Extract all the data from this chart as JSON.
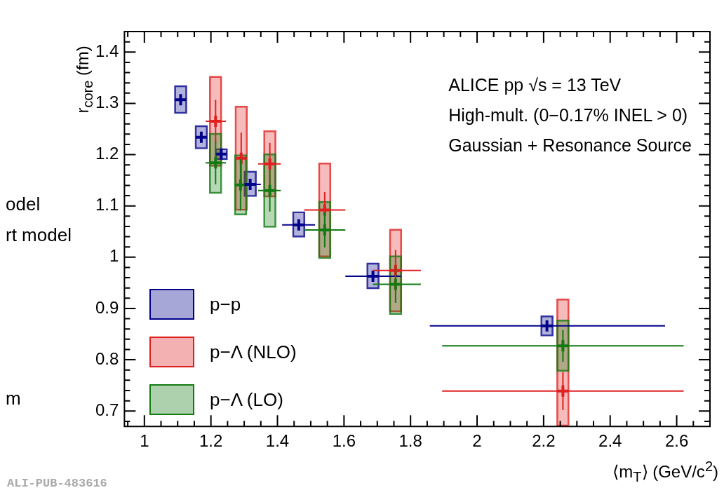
{
  "chart_data": {
    "type": "scatter",
    "xlabel": "⟨m$_{T}$⟩  (GeV/c$^{2}$)",
    "ylabel": "r$_{core}$ (fm)",
    "xlim": [
      0.94,
      2.7
    ],
    "ylim": [
      0.67,
      1.44
    ],
    "xticks": [
      {
        "value": 0.95,
        "label": null
      },
      1,
      {
        "value": 1.05,
        "label": null
      },
      {
        "value": 1.1,
        "label": null
      },
      {
        "value": 1.15,
        "label": null
      },
      1.2,
      {
        "value": 1.25,
        "label": null
      },
      {
        "value": 1.3,
        "label": null
      },
      {
        "value": 1.35,
        "label": null
      },
      1.4,
      {
        "value": 1.45,
        "label": null
      },
      {
        "value": 1.5,
        "label": null
      },
      {
        "value": 1.55,
        "label": null
      },
      1.6,
      {
        "value": 1.65,
        "label": null
      },
      {
        "value": 1.7,
        "label": null
      },
      {
        "value": 1.75,
        "label": null
      },
      1.8,
      {
        "value": 1.85,
        "label": null
      },
      {
        "value": 1.9,
        "label": null
      },
      {
        "value": 1.95,
        "label": null
      },
      2,
      {
        "value": 2.05,
        "label": null
      },
      {
        "value": 2.1,
        "label": null
      },
      {
        "value": 2.15,
        "label": null
      },
      2.2,
      {
        "value": 2.25,
        "label": null
      },
      {
        "value": 2.3,
        "label": null
      },
      {
        "value": 2.35,
        "label": null
      },
      2.4,
      {
        "value": 2.45,
        "label": null
      },
      {
        "value": 2.5,
        "label": null
      },
      {
        "value": 2.55,
        "label": null
      },
      2.6,
      {
        "value": 2.65,
        "label": null
      }
    ],
    "yticks": [
      {
        "value": 0.68,
        "label": null
      },
      0.7,
      {
        "value": 0.72,
        "label": null
      },
      {
        "value": 0.74,
        "label": null
      },
      {
        "value": 0.76,
        "label": null
      },
      {
        "value": 0.78,
        "label": null
      },
      0.8,
      {
        "value": 0.82,
        "label": null
      },
      {
        "value": 0.84,
        "label": null
      },
      {
        "value": 0.86,
        "label": null
      },
      {
        "value": 0.88,
        "label": null
      },
      0.9,
      {
        "value": 0.92,
        "label": null
      },
      {
        "value": 0.94,
        "label": null
      },
      {
        "value": 0.96,
        "label": null
      },
      {
        "value": 0.98,
        "label": null
      },
      1,
      {
        "value": 1.02,
        "label": null
      },
      {
        "value": 1.04,
        "label": null
      },
      {
        "value": 1.06,
        "label": null
      },
      {
        "value": 1.08,
        "label": null
      },
      1.1,
      {
        "value": 1.12,
        "label": null
      },
      {
        "value": 1.14,
        "label": null
      },
      {
        "value": 1.16,
        "label": null
      },
      {
        "value": 1.18,
        "label": null
      },
      1.2,
      {
        "value": 1.22,
        "label": null
      },
      {
        "value": 1.24,
        "label": null
      },
      {
        "value": 1.26,
        "label": null
      },
      {
        "value": 1.28,
        "label": null
      },
      1.3,
      {
        "value": 1.32,
        "label": null
      },
      {
        "value": 1.34,
        "label": null
      },
      {
        "value": 1.36,
        "label": null
      },
      {
        "value": 1.38,
        "label": null
      },
      1.4,
      {
        "value": 1.42,
        "label": null
      }
    ],
    "grid": false,
    "legend": "bottom left",
    "annotations": [
      "ALICE pp √s = 13 TeV",
      "High-mult. (0−0.17% INEL > 0)",
      "Gaussian + Resonance Source",
      "ALI-PUB-483616",
      "odel",
      "rt model",
      "m"
    ],
    "series": [
      {
        "type": "bar",
        "color": "#00008b",
        "x": [
          1.109,
          1.171,
          1.231,
          1.318,
          1.464,
          1.687,
          2.21
        ],
        "base": [
          1.28,
          1.211,
          1.19,
          1.118,
          1.039,
          0.938,
          0.846
        ],
        "values": [
          0.055,
          0.046,
          0.022,
          0.05,
          0.05,
          0.051,
          0.04
        ]
      },
      {
        "type": "bar",
        "color": "#e02020",
        "x": [
          1.214,
          1.291,
          1.377,
          1.542,
          1.755,
          2.258
        ],
        "base": [
          1.177,
          1.091,
          1.117,
          1.0,
          0.893,
          0.67
        ],
        "values": [
          0.176,
          0.204,
          0.13,
          0.184,
          0.162,
          0.249
        ]
      },
      {
        "type": "bar",
        "color": "#127a12",
        "x": [
          1.214,
          1.289,
          1.377,
          1.542,
          1.755,
          2.258
        ],
        "base": [
          1.124,
          1.082,
          1.058,
          0.997,
          0.888,
          0.777
        ],
        "values": [
          0.118,
          0.118,
          0.144,
          0.112,
          0.115,
          0.101
        ]
      },
      {
        "name": "p−p",
        "color": "#00008b",
        "marker": "cross",
        "x": [
          1.109,
          1.171,
          1.231,
          1.318,
          1.464,
          1.687,
          2.21
        ],
        "values": [
          1.307,
          1.234,
          1.201,
          1.142,
          1.063,
          0.963,
          0.866
        ],
        "xerrors": [
          null,
          null,
          null,
          [
            1.301,
            1.35
          ],
          [
            1.414,
            1.513
          ],
          [
            1.604,
            1.771
          ],
          [
            1.858,
            2.565
          ]
        ]
      },
      {
        "name": "p−Λ (NLO)",
        "color": "#e02020",
        "marker": "cross",
        "x": [
          1.214,
          1.291,
          1.377,
          1.542,
          1.755,
          2.258
        ],
        "values": [
          1.265,
          1.193,
          1.182,
          1.092,
          0.974,
          0.739
        ],
        "errors": [
          0.042,
          0.05,
          0.041,
          0.035,
          0.04,
          0.037
        ],
        "xerrors": [
          [
            1.184,
            1.245
          ],
          null,
          [
            1.342,
            1.41
          ],
          [
            1.48,
            1.604
          ],
          [
            1.687,
            1.831
          ],
          [
            1.895,
            2.621
          ]
        ]
      },
      {
        "name": "p−Λ (LO)",
        "color": "#127a12",
        "marker": "cross",
        "x": [
          1.214,
          1.289,
          1.377,
          1.542,
          1.755,
          2.258
        ],
        "values": [
          1.184,
          1.141,
          1.13,
          1.053,
          0.947,
          0.827
        ],
        "errors": [
          0.042,
          0.05,
          0.041,
          0.034,
          0.036,
          0.031
        ],
        "xerrors": [
          [
            1.184,
            1.245
          ],
          null,
          [
            1.342,
            1.41
          ],
          [
            1.48,
            1.604
          ],
          [
            1.687,
            1.831
          ],
          [
            1.895,
            2.621
          ]
        ]
      }
    ]
  }
}
